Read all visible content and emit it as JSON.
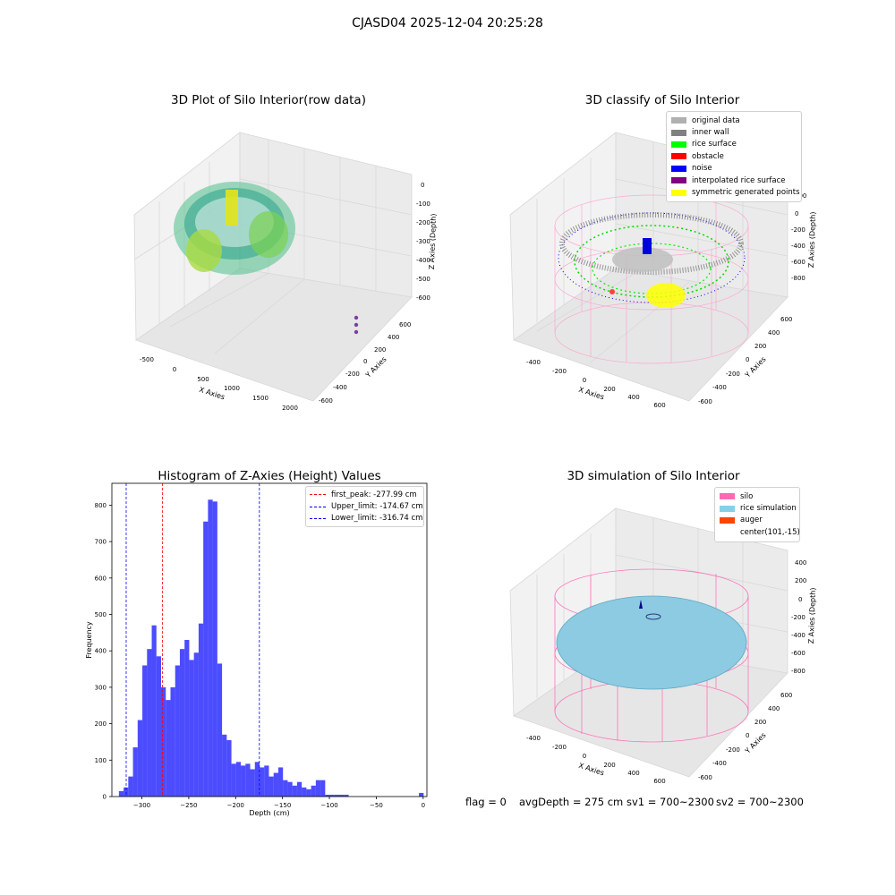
{
  "suptitle": "CJASD04 2025-12-04 20:25:28",
  "panels": {
    "raw": {
      "title": "3D Plot of Silo Interior(row data)",
      "xlabel": "X Axies",
      "ylabel": "Y Axies",
      "zlabel": "Z Axies (Depth)",
      "xticks": [
        "-500",
        "0",
        "500",
        "1000",
        "1500",
        "2000"
      ],
      "yticks": [
        "600",
        "400",
        "200",
        "0",
        "-200",
        "-400",
        "-600"
      ],
      "zticks": [
        "0",
        "-100",
        "-200",
        "-300",
        "-400",
        "-500",
        "-600"
      ]
    },
    "classify": {
      "title": "3D classify of Silo Interior",
      "xlabel": "X Axies",
      "ylabel": "Y Axies",
      "zlabel": "Z Axies (Depth)",
      "xticks": [
        "-400",
        "-200",
        "0",
        "200",
        "400",
        "600"
      ],
      "yticks": [
        "600",
        "400",
        "200",
        "0",
        "-200",
        "-400",
        "-600"
      ],
      "zticks": [
        "200",
        "0",
        "-200",
        "-400",
        "-600",
        "-800"
      ],
      "legend": [
        {
          "label": "original data",
          "color": "#b0b0b0"
        },
        {
          "label": "inner wall",
          "color": "#808080"
        },
        {
          "label": "rice surface",
          "color": "#00ff00"
        },
        {
          "label": "obstacle",
          "color": "#ff0000"
        },
        {
          "label": "noise",
          "color": "#0000ff"
        },
        {
          "label": "interpolated rice surface",
          "color": "#800080"
        },
        {
          "label": "symmetric generated points",
          "color": "#ffff00"
        }
      ]
    },
    "simulation": {
      "title": "3D simulation of Silo Interior",
      "xlabel": "X Axies",
      "ylabel": "Y Axies",
      "zlabel": "Z Axies (Depth)",
      "xticks": [
        "-400",
        "-200",
        "0",
        "200",
        "400",
        "600"
      ],
      "yticks": [
        "600",
        "400",
        "200",
        "0",
        "-200",
        "-400",
        "-600"
      ],
      "zticks": [
        "400",
        "200",
        "0",
        "-200",
        "-400",
        "-600",
        "-800"
      ],
      "legend": [
        {
          "label": "silo",
          "color": "#ff69b4"
        },
        {
          "label": "rice simulation",
          "color": "#87ceeb"
        },
        {
          "label": "auger",
          "color": "#ff4500"
        },
        {
          "label": "center(101,-15)",
          "color": "#ffffff"
        }
      ]
    }
  },
  "chart_data": {
    "type": "bar",
    "title": "Histogram of Z-Axies (Height) Values",
    "xlabel": "Depth (cm)",
    "ylabel": "Frequency",
    "xlim": [
      -332,
      4
    ],
    "ylim": [
      0,
      860
    ],
    "xticks": [
      -300,
      -250,
      -200,
      -150,
      -100,
      -50,
      0
    ],
    "yticks": [
      0,
      100,
      200,
      300,
      400,
      500,
      600,
      700,
      800
    ],
    "bar_color": "#0000ff",
    "bin_width": 5,
    "bins": [
      {
        "x": -322,
        "count": 15
      },
      {
        "x": -317,
        "count": 25
      },
      {
        "x": -312,
        "count": 55
      },
      {
        "x": -307,
        "count": 135
      },
      {
        "x": -302,
        "count": 210
      },
      {
        "x": -297,
        "count": 360
      },
      {
        "x": -292,
        "count": 405
      },
      {
        "x": -287,
        "count": 470
      },
      {
        "x": -282,
        "count": 385
      },
      {
        "x": -277,
        "count": 300
      },
      {
        "x": -272,
        "count": 265
      },
      {
        "x": -267,
        "count": 300
      },
      {
        "x": -262,
        "count": 360
      },
      {
        "x": -257,
        "count": 405
      },
      {
        "x": -252,
        "count": 430
      },
      {
        "x": -247,
        "count": 375
      },
      {
        "x": -242,
        "count": 395
      },
      {
        "x": -237,
        "count": 475
      },
      {
        "x": -232,
        "count": 755
      },
      {
        "x": -227,
        "count": 815
      },
      {
        "x": -222,
        "count": 810
      },
      {
        "x": -217,
        "count": 365
      },
      {
        "x": -212,
        "count": 170
      },
      {
        "x": -207,
        "count": 155
      },
      {
        "x": -202,
        "count": 90
      },
      {
        "x": -197,
        "count": 95
      },
      {
        "x": -192,
        "count": 85
      },
      {
        "x": -187,
        "count": 90
      },
      {
        "x": -182,
        "count": 75
      },
      {
        "x": -177,
        "count": 95
      },
      {
        "x": -172,
        "count": 80
      },
      {
        "x": -167,
        "count": 85
      },
      {
        "x": -162,
        "count": 55
      },
      {
        "x": -157,
        "count": 65
      },
      {
        "x": -152,
        "count": 80
      },
      {
        "x": -147,
        "count": 45
      },
      {
        "x": -142,
        "count": 40
      },
      {
        "x": -137,
        "count": 30
      },
      {
        "x": -132,
        "count": 40
      },
      {
        "x": -127,
        "count": 25
      },
      {
        "x": -122,
        "count": 20
      },
      {
        "x": -117,
        "count": 30
      },
      {
        "x": -112,
        "count": 45
      },
      {
        "x": -107,
        "count": 45
      },
      {
        "x": -102,
        "count": 5
      },
      {
        "x": -97,
        "count": 5
      },
      {
        "x": -92,
        "count": 5
      },
      {
        "x": -87,
        "count": 5
      },
      {
        "x": -82,
        "count": 5
      },
      {
        "x": -77,
        "count": 0
      },
      {
        "x": -72,
        "count": 0
      },
      {
        "x": -67,
        "count": 0
      },
      {
        "x": -62,
        "count": 0
      },
      {
        "x": -57,
        "count": 0
      },
      {
        "x": -52,
        "count": 0
      },
      {
        "x": -47,
        "count": 0
      },
      {
        "x": -42,
        "count": 0
      },
      {
        "x": -37,
        "count": 0
      },
      {
        "x": -32,
        "count": 0
      },
      {
        "x": -27,
        "count": 0
      },
      {
        "x": -22,
        "count": 0
      },
      {
        "x": -17,
        "count": 0
      },
      {
        "x": -12,
        "count": 0
      },
      {
        "x": -7,
        "count": 0
      },
      {
        "x": -2,
        "count": 10
      }
    ],
    "vlines": [
      {
        "label": "first_peak: -277.99 cm",
        "x": -277.99,
        "color": "#ff0000"
      },
      {
        "label": "Upper_limit: -174.67 cm",
        "x": -174.67,
        "color": "#0000ff"
      },
      {
        "label": "Lower_limit: -316.74 cm",
        "x": -316.74,
        "color": "#0000ff"
      }
    ],
    "legend_position": "top-right"
  },
  "footer": {
    "flag": "flag = 0",
    "avg": "avgDepth = 275 cm",
    "sv1": "sv1 = 700~2300",
    "sv2": "sv2 = 700~2300"
  }
}
